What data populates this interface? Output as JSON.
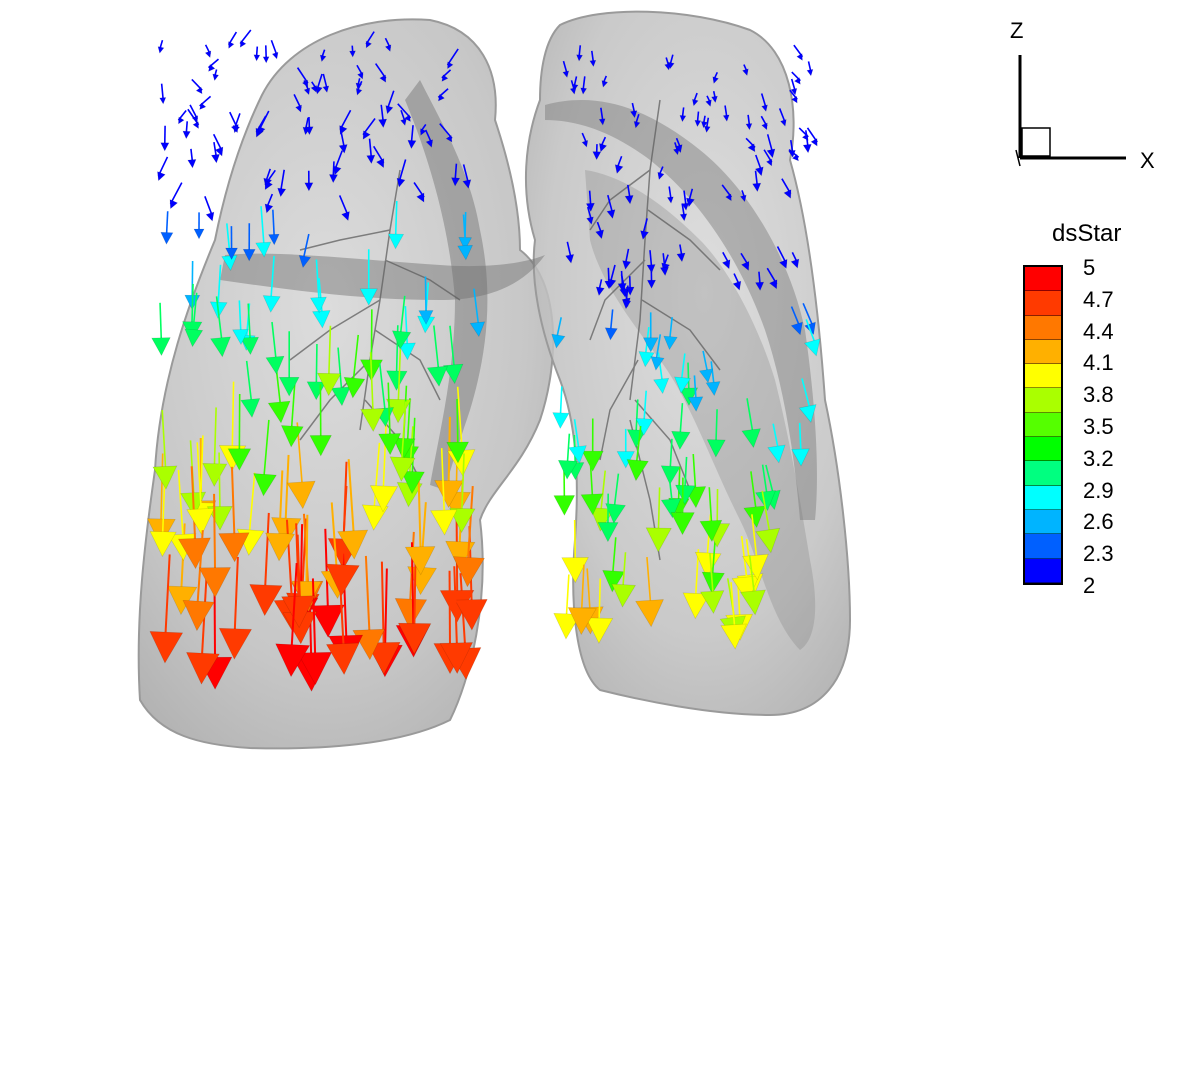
{
  "triad": {
    "z_label": "Z",
    "x_label": "X"
  },
  "legend": {
    "title": "dsStar",
    "ticks": [
      "5",
      "4.7",
      "4.4",
      "4.1",
      "3.8",
      "3.5",
      "3.2",
      "2.9",
      "2.6",
      "2.3",
      "2"
    ],
    "colors": [
      "#ff0000",
      "#ff3a00",
      "#ff7800",
      "#ffb000",
      "#ffff00",
      "#aaff00",
      "#55ff00",
      "#00ff00",
      "#00ff80",
      "#00ffff",
      "#00b4ff",
      "#0060ff",
      "#0000ff"
    ]
  },
  "colors": {
    "lung": "#a9a9a9",
    "lung_edge": "#8c8c8c",
    "lobe": "#7a7a7a"
  }
}
